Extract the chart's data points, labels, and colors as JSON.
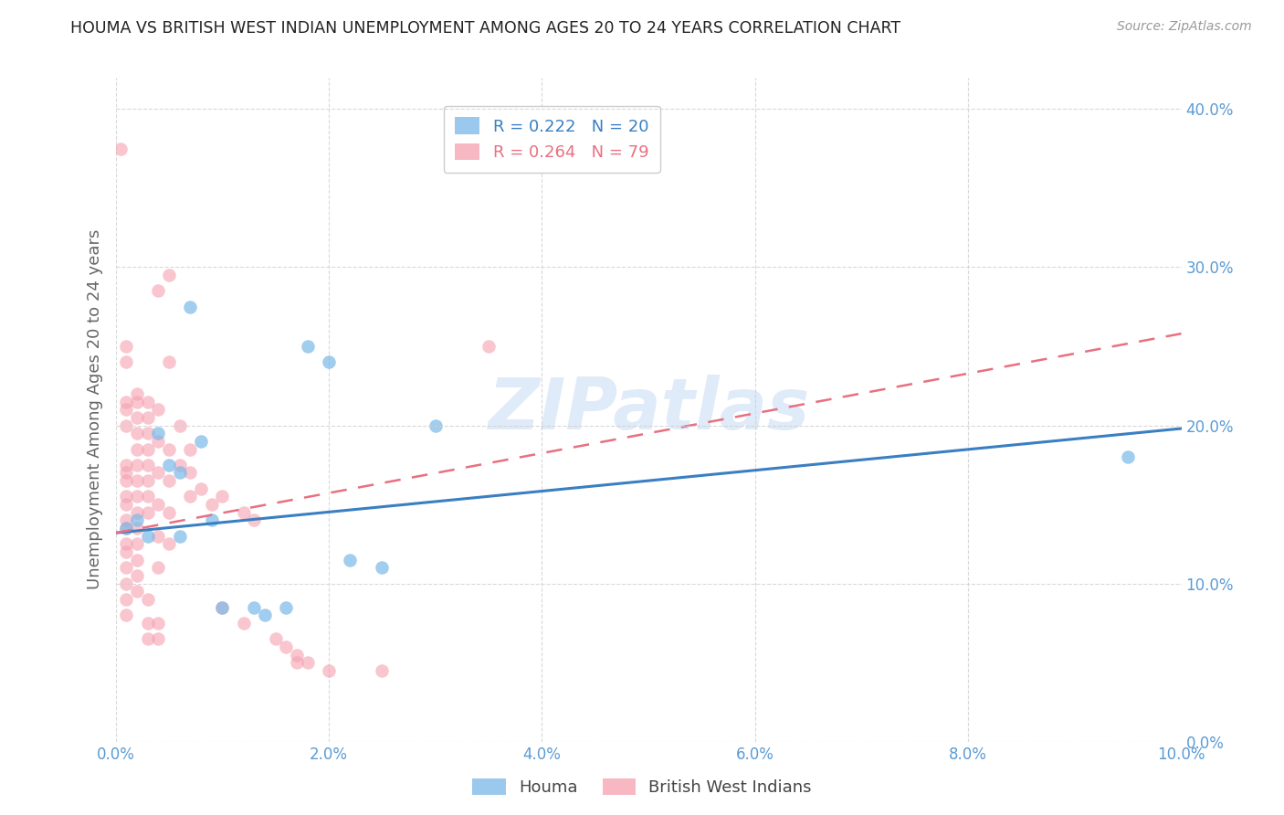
{
  "title": "HOUMA VS BRITISH WEST INDIAN UNEMPLOYMENT AMONG AGES 20 TO 24 YEARS CORRELATION CHART",
  "source": "Source: ZipAtlas.com",
  "ylabel": "Unemployment Among Ages 20 to 24 years",
  "xlim": [
    0,
    0.1
  ],
  "ylim": [
    0,
    0.42
  ],
  "xticks": [
    0.0,
    0.02,
    0.04,
    0.06,
    0.08,
    0.1
  ],
  "yticks": [
    0.0,
    0.1,
    0.2,
    0.3,
    0.4
  ],
  "xticklabels": [
    "0.0%",
    "2.0%",
    "4.0%",
    "6.0%",
    "8.0%",
    "10.0%"
  ],
  "yticklabels": [
    "0.0%",
    "10.0%",
    "20.0%",
    "30.0%",
    "40.0%"
  ],
  "houma_R": 0.222,
  "houma_N": 20,
  "bwi_R": 0.264,
  "bwi_N": 79,
  "houma_color": "#7ab8e8",
  "bwi_color": "#f5a0b0",
  "houma_line_color": "#3a7fc1",
  "bwi_line_color": "#e87080",
  "watermark": "ZIPatlas",
  "houma_scatter": [
    [
      0.001,
      0.135
    ],
    [
      0.002,
      0.14
    ],
    [
      0.003,
      0.13
    ],
    [
      0.004,
      0.195
    ],
    [
      0.005,
      0.175
    ],
    [
      0.006,
      0.17
    ],
    [
      0.006,
      0.13
    ],
    [
      0.007,
      0.275
    ],
    [
      0.008,
      0.19
    ],
    [
      0.009,
      0.14
    ],
    [
      0.01,
      0.085
    ],
    [
      0.013,
      0.085
    ],
    [
      0.014,
      0.08
    ],
    [
      0.016,
      0.085
    ],
    [
      0.018,
      0.25
    ],
    [
      0.02,
      0.24
    ],
    [
      0.022,
      0.115
    ],
    [
      0.025,
      0.11
    ],
    [
      0.03,
      0.2
    ],
    [
      0.095,
      0.18
    ]
  ],
  "bwi_scatter": [
    [
      0.0005,
      0.375
    ],
    [
      0.001,
      0.25
    ],
    [
      0.001,
      0.24
    ],
    [
      0.001,
      0.21
    ],
    [
      0.001,
      0.215
    ],
    [
      0.001,
      0.2
    ],
    [
      0.001,
      0.175
    ],
    [
      0.001,
      0.17
    ],
    [
      0.001,
      0.165
    ],
    [
      0.001,
      0.155
    ],
    [
      0.001,
      0.15
    ],
    [
      0.001,
      0.14
    ],
    [
      0.001,
      0.135
    ],
    [
      0.001,
      0.125
    ],
    [
      0.001,
      0.12
    ],
    [
      0.001,
      0.11
    ],
    [
      0.001,
      0.1
    ],
    [
      0.001,
      0.09
    ],
    [
      0.001,
      0.08
    ],
    [
      0.002,
      0.22
    ],
    [
      0.002,
      0.215
    ],
    [
      0.002,
      0.205
    ],
    [
      0.002,
      0.195
    ],
    [
      0.002,
      0.185
    ],
    [
      0.002,
      0.175
    ],
    [
      0.002,
      0.165
    ],
    [
      0.002,
      0.155
    ],
    [
      0.002,
      0.145
    ],
    [
      0.002,
      0.135
    ],
    [
      0.002,
      0.125
    ],
    [
      0.002,
      0.115
    ],
    [
      0.002,
      0.105
    ],
    [
      0.002,
      0.095
    ],
    [
      0.003,
      0.215
    ],
    [
      0.003,
      0.205
    ],
    [
      0.003,
      0.195
    ],
    [
      0.003,
      0.185
    ],
    [
      0.003,
      0.175
    ],
    [
      0.003,
      0.165
    ],
    [
      0.003,
      0.155
    ],
    [
      0.003,
      0.145
    ],
    [
      0.003,
      0.09
    ],
    [
      0.003,
      0.075
    ],
    [
      0.003,
      0.065
    ],
    [
      0.004,
      0.285
    ],
    [
      0.004,
      0.21
    ],
    [
      0.004,
      0.19
    ],
    [
      0.004,
      0.17
    ],
    [
      0.004,
      0.15
    ],
    [
      0.004,
      0.13
    ],
    [
      0.004,
      0.11
    ],
    [
      0.004,
      0.075
    ],
    [
      0.004,
      0.065
    ],
    [
      0.005,
      0.295
    ],
    [
      0.005,
      0.24
    ],
    [
      0.005,
      0.185
    ],
    [
      0.005,
      0.165
    ],
    [
      0.005,
      0.145
    ],
    [
      0.005,
      0.125
    ],
    [
      0.006,
      0.2
    ],
    [
      0.006,
      0.175
    ],
    [
      0.007,
      0.185
    ],
    [
      0.007,
      0.17
    ],
    [
      0.007,
      0.155
    ],
    [
      0.008,
      0.16
    ],
    [
      0.009,
      0.15
    ],
    [
      0.01,
      0.155
    ],
    [
      0.01,
      0.085
    ],
    [
      0.012,
      0.145
    ],
    [
      0.012,
      0.075
    ],
    [
      0.013,
      0.14
    ],
    [
      0.015,
      0.065
    ],
    [
      0.016,
      0.06
    ],
    [
      0.017,
      0.055
    ],
    [
      0.017,
      0.05
    ],
    [
      0.018,
      0.05
    ],
    [
      0.02,
      0.045
    ],
    [
      0.025,
      0.045
    ],
    [
      0.035,
      0.25
    ]
  ],
  "houma_line": [
    [
      0.0,
      0.132
    ],
    [
      0.1,
      0.198
    ]
  ],
  "bwi_line": [
    [
      0.0,
      0.132
    ],
    [
      0.1,
      0.258
    ]
  ],
  "background_color": "#ffffff",
  "grid_color": "#d0d0d0",
  "title_color": "#222222",
  "axis_label_color": "#666666",
  "tick_label_color": "#5b9bd5",
  "right_tick_label_color": "#5b9bd5"
}
